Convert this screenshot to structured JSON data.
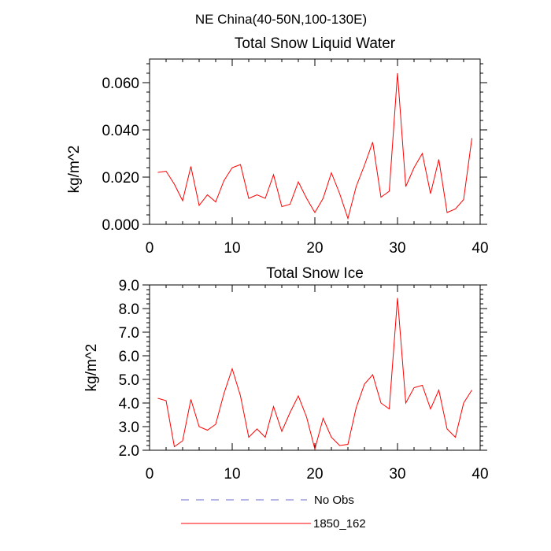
{
  "figure": {
    "suptitle": "NE China(40-50N,100-130E)"
  },
  "legend": {
    "entries": [
      {
        "label": "No Obs",
        "color": "#6a6acd",
        "dash": "dashed"
      },
      {
        "label": "1850_162",
        "color": "#ff0000",
        "dash": "solid"
      }
    ]
  },
  "chart_data": [
    {
      "type": "line",
      "title": "Total Snow Liquid Water",
      "xlabel": "",
      "ylabel": "kg/m^2",
      "xlim": [
        0,
        40
      ],
      "ylim": [
        0,
        0.07
      ],
      "xticks": [
        0,
        10,
        20,
        30,
        40
      ],
      "xtick_labels": [
        "0",
        "10",
        "20",
        "30",
        "40"
      ],
      "yticks": [
        0,
        0.02,
        0.04,
        0.06
      ],
      "ytick_labels": [
        "0.000",
        "0.020",
        "0.040",
        "0.060"
      ],
      "x": [
        1,
        2,
        3,
        4,
        5,
        6,
        7,
        8,
        9,
        10,
        11,
        12,
        13,
        14,
        15,
        16,
        17,
        18,
        19,
        20,
        21,
        22,
        23,
        24,
        25,
        26,
        27,
        28,
        29,
        30,
        31,
        32,
        33,
        34,
        35,
        36,
        37,
        38,
        39
      ],
      "series": [
        {
          "name": "1850_162",
          "color": "#ff0000",
          "values": [
            0.022,
            0.0225,
            0.017,
            0.01,
            0.0245,
            0.008,
            0.0125,
            0.0095,
            0.0185,
            0.024,
            0.0253,
            0.011,
            0.0125,
            0.011,
            0.021,
            0.0075,
            0.0085,
            0.018,
            0.011,
            0.005,
            0.011,
            0.0218,
            0.013,
            0.0025,
            0.016,
            0.025,
            0.0348,
            0.0115,
            0.014,
            0.064,
            0.016,
            0.024,
            0.03,
            0.013,
            0.0275,
            0.005,
            0.0065,
            0.0105,
            0.0365
          ]
        }
      ]
    },
    {
      "type": "line",
      "title": "Total Snow Ice",
      "xlabel": "",
      "ylabel": "kg/m^2",
      "xlim": [
        0,
        40
      ],
      "ylim": [
        2,
        9
      ],
      "xticks": [
        0,
        10,
        20,
        30,
        40
      ],
      "xtick_labels": [
        "0",
        "10",
        "20",
        "30",
        "40"
      ],
      "yticks": [
        2,
        3,
        4,
        5,
        6,
        7,
        8,
        9
      ],
      "ytick_labels": [
        "2.0",
        "3.0",
        "4.0",
        "5.0",
        "6.0",
        "7.0",
        "8.0",
        "9.0"
      ],
      "x": [
        1,
        2,
        3,
        4,
        5,
        6,
        7,
        8,
        9,
        10,
        11,
        12,
        13,
        14,
        15,
        16,
        17,
        18,
        19,
        20,
        21,
        22,
        23,
        24,
        25,
        26,
        27,
        28,
        29,
        30,
        31,
        32,
        33,
        34,
        35,
        36,
        37,
        38,
        39
      ],
      "series": [
        {
          "name": "1850_162",
          "color": "#ff0000",
          "values": [
            4.2,
            4.1,
            2.15,
            2.4,
            4.15,
            3.0,
            2.85,
            3.1,
            4.4,
            5.45,
            4.3,
            2.55,
            2.9,
            2.55,
            3.85,
            2.8,
            3.6,
            4.3,
            3.4,
            2.05,
            3.35,
            2.55,
            2.2,
            2.25,
            3.8,
            4.8,
            5.2,
            4.0,
            3.75,
            8.45,
            4.0,
            4.65,
            4.75,
            3.75,
            4.55,
            2.9,
            2.55,
            4.0,
            4.55
          ]
        }
      ]
    }
  ]
}
